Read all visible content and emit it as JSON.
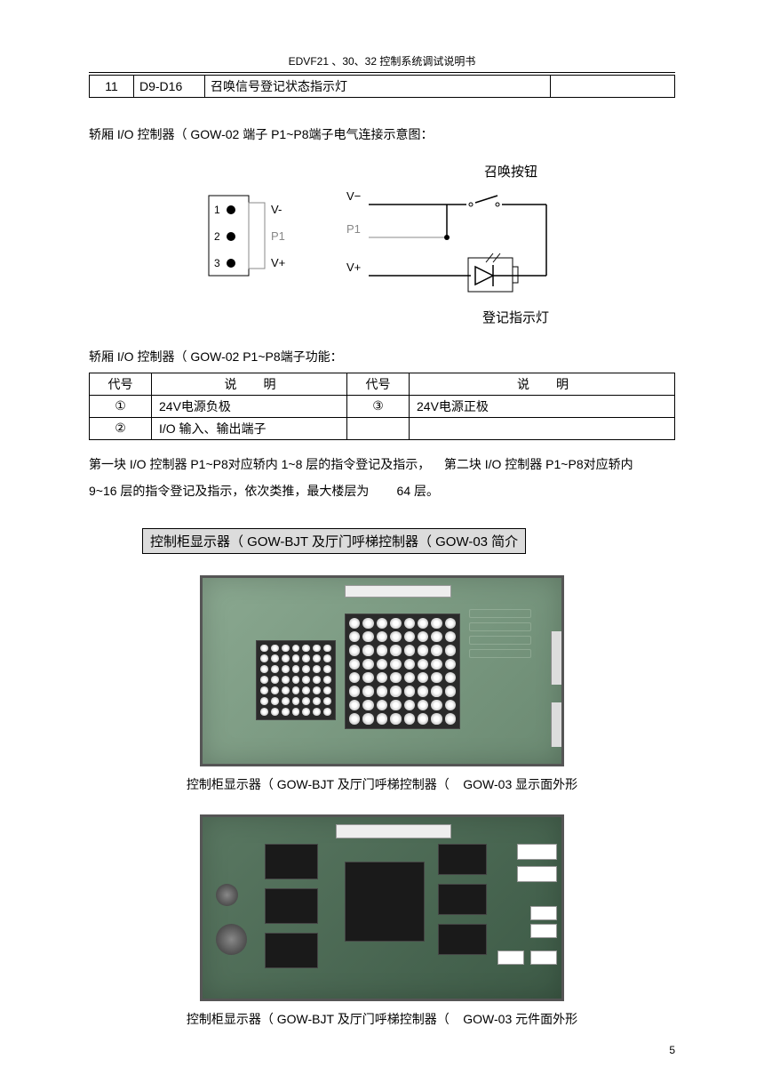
{
  "header": {
    "title": "EDVF21 、30、32 控制系统调试说明书"
  },
  "top_table": {
    "row": {
      "num": "11",
      "code": "D9-D16",
      "desc": "召唤信号登记状态指示灯",
      "note": ""
    }
  },
  "para1": "轿厢 I/O 控制器（ GOW-02 端子 P1~P8端子电气连接示意图：",
  "diagram": {
    "label_button": "召唤按钮",
    "label_indicator": "登记指示灯",
    "pin1": "1",
    "pin2": "2",
    "pin3": "3",
    "vminus": "V-",
    "p1": "P1",
    "vplus": "V+",
    "vminus2": "V−",
    "p12": "P1",
    "vplus2": "V+"
  },
  "para2": "轿厢 I/O 控制器（ GOW-02 P1~P8端子功能：",
  "func_table": {
    "headers": {
      "code": "代号",
      "desc": "说明",
      "code2": "代号",
      "desc2": "说明"
    },
    "rows": [
      {
        "c1": "①",
        "d1": "24V电源负极",
        "c2": "③",
        "d2": "24V电源正极"
      },
      {
        "c1": "②",
        "d1": "I/O 输入、输出端子",
        "c2": "",
        "d2": ""
      }
    ]
  },
  "para3a": "第一块 I/O 控制器 P1~P8对应轿内 1~8 层的指令登记及指示，    第二块 I/O 控制器 P1~P8对应轿内",
  "para3b": "9~16 层的指令登记及指示，依次类推，最大楼层为        64 层。",
  "section_title": "控制柜显示器（ GOW-BJT 及厅门呼梯控制器（ GOW-03 简介",
  "caption1": "控制柜显示器（ GOW-BJT 及厅门呼梯控制器（    GOW-03 显示面外形",
  "caption2": "控制柜显示器（ GOW-BJT 及厅门呼梯控制器（    GOW-03 元件面外形",
  "page_number": "5",
  "colors": {
    "pcb1_bg": "#8aa890",
    "pcb2_bg": "#5a7862",
    "section_bg": "#dcdcdc"
  }
}
